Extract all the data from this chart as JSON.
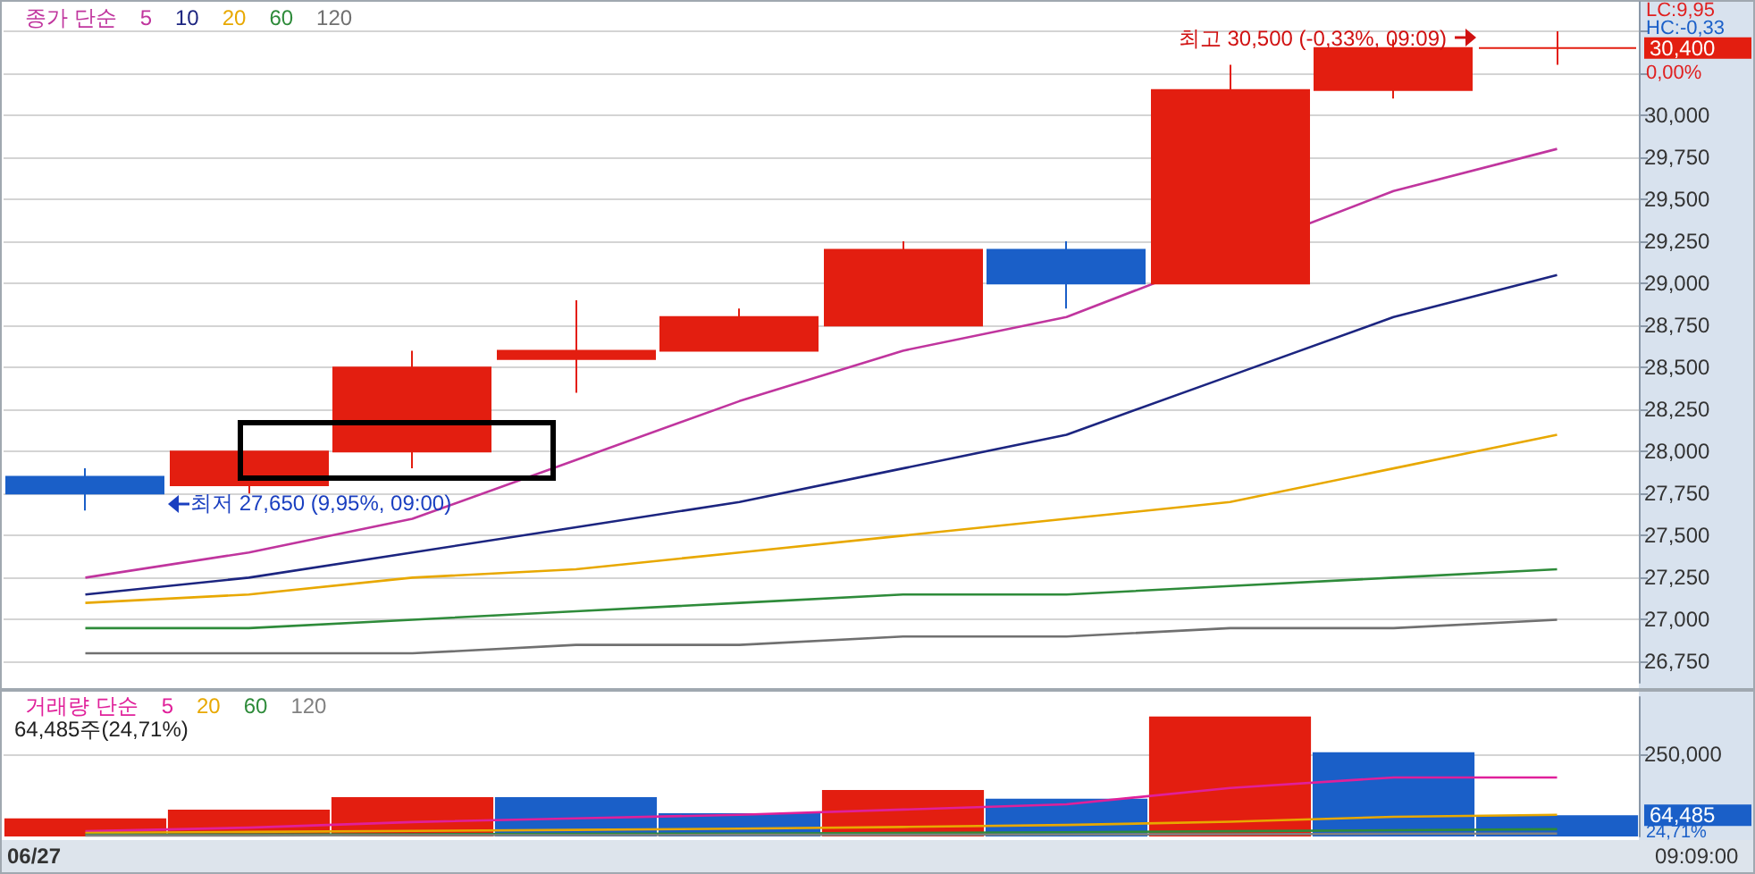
{
  "chart_data": [
    {
      "type": "candlestick",
      "legend_title": "종가 단순",
      "legend": "top left",
      "grid": "y",
      "tick_labels": "y",
      "categories": [
        null,
        null,
        null,
        null,
        null,
        null,
        null,
        null,
        null,
        null
      ],
      "ohlc": [
        [
          27850,
          27900,
          27650,
          27750
        ],
        [
          27800,
          28000,
          27750,
          28000
        ],
        [
          28000,
          28600,
          27900,
          28500
        ],
        [
          28550,
          28900,
          28350,
          28600
        ],
        [
          28600,
          28850,
          28600,
          28800
        ],
        [
          28750,
          29250,
          28750,
          29200
        ],
        [
          29200,
          29250,
          28850,
          29000
        ],
        [
          29000,
          30300,
          29000,
          30150
        ],
        [
          30150,
          30450,
          30100,
          30400
        ],
        [
          30400,
          30500,
          30300,
          30400
        ]
      ],
      "colors": [
        "#1a5fc8",
        "#e31e10",
        "#e31e10",
        "#e31e10",
        "#e31e10",
        "#e31e10",
        "#1a5fc8",
        "#e31e10",
        "#e31e10",
        "#e31e10"
      ],
      "series": [
        {
          "type": "line",
          "name": "5",
          "color": "#c0359e",
          "values": [
            27250,
            27400,
            27600,
            27950,
            28300,
            28600,
            28800,
            null,
            29550,
            29800
          ]
        },
        {
          "type": "line",
          "name": "10",
          "color": "#1c2580",
          "values": [
            27150,
            27250,
            27400,
            27550,
            27700,
            27900,
            28100,
            28450,
            28800,
            29050
          ]
        },
        {
          "type": "line",
          "name": "20",
          "color": "#e8a800",
          "values": [
            27100,
            27150,
            27250,
            27300,
            27400,
            27500,
            27600,
            27700,
            27900,
            28100
          ]
        },
        {
          "type": "line",
          "name": "60",
          "color": "#2e8b3a",
          "values": [
            26950,
            26950,
            27000,
            27050,
            27100,
            27150,
            27150,
            27200,
            27250,
            27300
          ]
        },
        {
          "type": "line",
          "name": "120",
          "color": "#707070",
          "values": [
            26800,
            26800,
            26800,
            26850,
            26850,
            26900,
            26900,
            26950,
            26950,
            27000
          ]
        }
      ],
      "ylim": [
        26625,
        30675
      ],
      "yticks": [
        {
          "value": 26750,
          "label": "26,750"
        },
        {
          "value": 27000,
          "label": "27,000"
        },
        {
          "value": 27250,
          "label": "27,250"
        },
        {
          "value": 27500,
          "label": "27,500"
        },
        {
          "value": 27750,
          "label": "27,750"
        },
        {
          "value": 28000,
          "label": "28,000"
        },
        {
          "value": 28250,
          "label": "28,250"
        },
        {
          "value": 28500,
          "label": "28,500"
        },
        {
          "value": 28750,
          "label": "28,750"
        },
        {
          "value": 29000,
          "label": "29,000"
        },
        {
          "value": 29250,
          "label": "29,250"
        },
        {
          "value": 29500,
          "label": "29,500"
        },
        {
          "value": 29750,
          "label": "29,750"
        },
        {
          "value": 30000,
          "label": "30,000"
        },
        {
          "value": 30250,
          "label": null
        },
        {
          "value": 30500,
          "label": null
        }
      ],
      "annotations": [
        "최저 27,650 (9,95%, 09:00)",
        "최고 30,500 (-0,33%, 09:09)",
        "LC:9,95",
        "HC:-0,33",
        "30,400",
        "0,00%"
      ]
    },
    {
      "type": "bar",
      "legend_title": "거래량 단순",
      "legend": "top left",
      "grid": "y",
      "tick_labels": "y",
      "categories": [
        null,
        null,
        null,
        null,
        null,
        null,
        null,
        null,
        null,
        null
      ],
      "series": [
        {
          "colors": [
            "#e31e10",
            "#e31e10",
            "#e31e10",
            "#1a5fc8",
            "#1a5fc8",
            "#e31e10",
            "#1a5fc8",
            "#e31e10",
            "#1a5fc8",
            "#1a5fc8"
          ],
          "values": [
            55000,
            82000,
            120000,
            120000,
            71000,
            142000,
            115000,
            366000,
            257000,
            64485
          ]
        },
        {
          "type": "line",
          "name": "5",
          "color": "#e0209a",
          "values": [
            16000,
            27000,
            44000,
            55000,
            66000,
            82000,
            98000,
            148000,
            180000,
            180000
          ]
        },
        {
          "type": "line",
          "name": "20",
          "color": "#e8a800",
          "values": [
            11000,
            14000,
            17000,
            20000,
            24000,
            29000,
            35000,
            45000,
            60000,
            66000
          ]
        },
        {
          "type": "line",
          "name": "60",
          "color": "#2e8b3a",
          "values": [
            5000,
            6000,
            7000,
            8000,
            9000,
            11000,
            13000,
            16000,
            19000,
            22000
          ]
        },
        {
          "type": "line",
          "name": "120",
          "color": "#808080",
          "values": [
            3000,
            3000,
            4000,
            4000,
            5000,
            5000,
            6000,
            7000,
            8000,
            9000
          ]
        }
      ],
      "ylim": [
        0,
        425000
      ],
      "yticks": [
        {
          "value": 250000,
          "label": "250,000"
        }
      ],
      "annotations": [
        "64,485주(24,71%)",
        "64,485",
        "24,71%",
        "06/27",
        "09:09:00"
      ]
    }
  ]
}
